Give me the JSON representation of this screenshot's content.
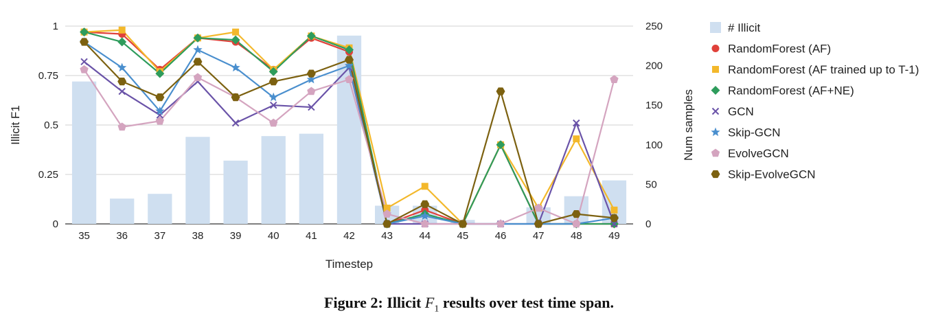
{
  "caption": {
    "prefix": "Figure 2: Illicit",
    "symbol": "F",
    "subscript": "1",
    "suffix": "results over test time span."
  },
  "chart_data": {
    "type": "line",
    "xlabel": "Timestep",
    "ylabel": "Illicit F1",
    "y2label": "Num samples",
    "x": [
      35,
      36,
      37,
      38,
      39,
      40,
      41,
      42,
      43,
      44,
      45,
      46,
      47,
      48,
      49
    ],
    "ylim": [
      0,
      1
    ],
    "y2lim": [
      0,
      250
    ],
    "yticks": [
      0,
      0.25,
      0.5,
      0.75,
      1
    ],
    "yticklabels": [
      "0",
      "0.25",
      "0.5",
      "0.75",
      "1"
    ],
    "y2ticks": [
      0,
      50,
      100,
      150,
      200,
      250
    ],
    "grid": "horizontal",
    "legend_position": "right",
    "bars": {
      "name": "# Illicit",
      "color": "#cfdff0",
      "values": [
        180,
        32,
        38,
        110,
        80,
        111,
        114,
        238,
        23,
        23,
        5,
        0,
        21,
        35,
        55
      ]
    },
    "series": [
      {
        "name": "RandomForest (AF)",
        "color": "#e0413a",
        "marker": "circle",
        "values": [
          0.97,
          0.96,
          0.78,
          0.94,
          0.92,
          0.78,
          0.94,
          0.87,
          0,
          0.07,
          0,
          0.4,
          0,
          0,
          0
        ]
      },
      {
        "name": "RandomForest  (AF trained up to T-1)",
        "color": "#f3b82b",
        "marker": "square",
        "values": [
          0.97,
          0.98,
          0.77,
          0.94,
          0.97,
          0.78,
          0.95,
          0.89,
          0.08,
          0.19,
          0,
          0.4,
          0.08,
          0.43,
          0.07
        ]
      },
      {
        "name": "RandomForest (AF+NE)",
        "color": "#2e9c5c",
        "marker": "diamond",
        "values": [
          0.97,
          0.92,
          0.76,
          0.94,
          0.93,
          0.77,
          0.95,
          0.88,
          0,
          0.05,
          0,
          0.4,
          0,
          0,
          0
        ]
      },
      {
        "name": "GCN",
        "color": "#6a53a8",
        "marker": "x",
        "values": [
          0.82,
          0.67,
          0.55,
          0.72,
          0.51,
          0.6,
          0.59,
          0.79,
          0,
          0,
          0,
          0,
          0,
          0.51,
          0
        ]
      },
      {
        "name": "Skip-GCN",
        "color": "#4a8fce",
        "marker": "star",
        "values": [
          0.92,
          0.79,
          0.57,
          0.88,
          0.79,
          0.64,
          0.73,
          0.8,
          0,
          0.04,
          0,
          0,
          0,
          0,
          0.03
        ]
      },
      {
        "name": "EvolveGCN",
        "color": "#d4a4bf",
        "marker": "pentagon",
        "values": [
          0.78,
          0.49,
          0.52,
          0.74,
          0.64,
          0.51,
          0.67,
          0.73,
          0.05,
          0,
          0,
          0,
          0.08,
          0,
          0.73
        ]
      },
      {
        "name": "Skip-EvolveGCN",
        "color": "#7c6110",
        "marker": "hexagon",
        "values": [
          0.92,
          0.72,
          0.64,
          0.82,
          0.64,
          0.72,
          0.76,
          0.83,
          0,
          0.1,
          0,
          0.67,
          0,
          0.05,
          0.03
        ]
      }
    ]
  }
}
